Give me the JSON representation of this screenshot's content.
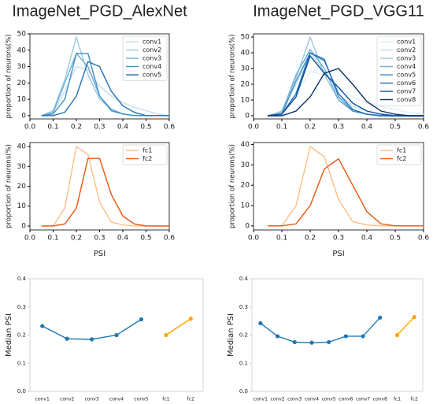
{
  "chart_data": [
    {
      "type": "line",
      "title": "ImageNet_PGD_AlexNet",
      "ylabel": "proportion of neurons(%)",
      "x": [
        0.05,
        0.1,
        0.15,
        0.2,
        0.25,
        0.3,
        0.35,
        0.4,
        0.45,
        0.5,
        0.55,
        0.6
      ],
      "series": [
        {
          "name": "conv1",
          "color": "#c6dbef",
          "values": [
            0,
            2,
            15,
            30,
            28,
            18,
            12,
            8,
            5,
            3,
            1,
            0
          ]
        },
        {
          "name": "conv2",
          "color": "#9ecae1",
          "values": [
            0,
            3,
            22,
            48,
            25,
            10,
            4,
            1,
            0,
            0,
            0,
            0
          ]
        },
        {
          "name": "conv3",
          "color": "#6baed6",
          "values": [
            0,
            2,
            20,
            38,
            30,
            12,
            4,
            1,
            0,
            0,
            0,
            0
          ]
        },
        {
          "name": "conv4",
          "color": "#4292c6",
          "values": [
            0,
            1,
            10,
            38,
            38,
            12,
            3,
            1,
            0,
            0,
            0,
            0
          ]
        },
        {
          "name": "conv5",
          "color": "#2171b5",
          "values": [
            0,
            0,
            2,
            12,
            33,
            30,
            15,
            6,
            2,
            0,
            0,
            0
          ]
        }
      ],
      "xlim": [
        0,
        0.6
      ],
      "xticks": [
        {
          "value": 0,
          "label": "0.0"
        },
        0.1,
        0.2,
        0.3,
        0.4,
        0.5,
        0.6
      ],
      "ylim": [
        -2,
        50
      ],
      "yticks": [
        0,
        10,
        20,
        30,
        40,
        50
      ],
      "legend": "upper right"
    },
    {
      "type": "line",
      "xlabel": "PSI",
      "ylabel": "proportion of neurons(%)",
      "x": [
        0.05,
        0.1,
        0.15,
        0.2,
        0.25,
        0.3,
        0.35,
        0.4,
        0.45,
        0.5,
        0.55,
        0.6
      ],
      "series": [
        {
          "name": "fc1",
          "color": "#fdbe85",
          "values": [
            0,
            0,
            9,
            40,
            36,
            12,
            2,
            0.5,
            0,
            0,
            0,
            0
          ]
        },
        {
          "name": "fc2",
          "color": "#e6550d",
          "values": [
            0,
            0,
            1,
            9,
            34,
            34,
            16,
            5,
            1,
            0,
            0,
            0
          ]
        }
      ],
      "xlim": [
        0,
        0.6
      ],
      "xticks": [
        {
          "value": 0,
          "label": "0.0"
        },
        0.1,
        0.2,
        0.3,
        0.4,
        0.5,
        0.6
      ],
      "ylim": [
        -2,
        42
      ],
      "yticks": [
        0,
        10,
        20,
        30,
        40
      ],
      "legend": "upper right"
    },
    {
      "type": "line",
      "title": "ImageNet_PGD_VGG11",
      "ylabel": "proportion of neurons(%)",
      "x": [
        0.05,
        0.1,
        0.15,
        0.2,
        0.25,
        0.3,
        0.35,
        0.4,
        0.45,
        0.5,
        0.55,
        0.6
      ],
      "series": [
        {
          "name": "conv1",
          "color": "#deebf7",
          "values": [
            0,
            2,
            14,
            28,
            26,
            18,
            12,
            8,
            6,
            4,
            2,
            1
          ]
        },
        {
          "name": "conv2",
          "color": "#c6dbef",
          "values": [
            0,
            3,
            20,
            40,
            28,
            14,
            6,
            3,
            1,
            0,
            0,
            0
          ]
        },
        {
          "name": "conv3",
          "color": "#9ecae1",
          "values": [
            0,
            3,
            24,
            50,
            26,
            10,
            3,
            1,
            0,
            0,
            0,
            0
          ]
        },
        {
          "name": "conv4",
          "color": "#6baed6",
          "values": [
            0,
            2,
            26,
            42,
            30,
            10,
            3,
            1,
            0,
            0,
            0,
            0
          ]
        },
        {
          "name": "conv5",
          "color": "#4292c6",
          "values": [
            0,
            1,
            22,
            40,
            36,
            12,
            3,
            1,
            0,
            0,
            0,
            0
          ]
        },
        {
          "name": "conv6",
          "color": "#2171b5",
          "values": [
            0,
            1,
            14,
            40,
            35,
            14,
            4,
            1,
            0,
            0,
            0,
            0
          ]
        },
        {
          "name": "conv7",
          "color": "#08519c",
          "values": [
            0,
            1,
            12,
            38,
            27,
            18,
            8,
            3,
            1,
            0,
            0,
            0
          ]
        },
        {
          "name": "conv8",
          "color": "#08306b",
          "values": [
            0,
            0,
            3,
            12,
            27,
            30,
            20,
            9,
            3,
            1,
            0,
            0
          ]
        }
      ],
      "xlim": [
        0,
        0.6
      ],
      "xticks": [
        {
          "value": 0,
          "label": "0.0"
        },
        0.1,
        0.2,
        0.3,
        0.4,
        0.5,
        0.6
      ],
      "ylim": [
        -2,
        52
      ],
      "yticks": [
        0,
        10,
        20,
        30,
        40,
        50
      ],
      "legend": "upper right"
    },
    {
      "type": "line",
      "xlabel": "PSI",
      "ylabel": "proportion of neurons(%)",
      "x": [
        0.05,
        0.1,
        0.15,
        0.2,
        0.25,
        0.3,
        0.35,
        0.4,
        0.45,
        0.5,
        0.55,
        0.6
      ],
      "series": [
        {
          "name": "fc1",
          "color": "#fdbe85",
          "values": [
            0,
            0,
            10,
            39,
            34,
            13,
            2,
            0.5,
            0,
            0,
            0,
            0
          ]
        },
        {
          "name": "fc2",
          "color": "#e6550d",
          "values": [
            0,
            0,
            1,
            10,
            28,
            33,
            20,
            7,
            1,
            0,
            0,
            0
          ]
        }
      ],
      "xlim": [
        0,
        0.6
      ],
      "xticks": [
        {
          "value": 0,
          "label": "0.0"
        },
        0.1,
        0.2,
        0.3,
        0.4,
        0.5,
        0.6
      ],
      "ylim": [
        -2,
        41
      ],
      "yticks": [
        0,
        10,
        20,
        30,
        40
      ],
      "legend": "upper right"
    },
    {
      "type": "line",
      "ylabel": "Median PSI",
      "marker": "o",
      "categories": [
        "conv1",
        "conv2",
        "conv3",
        "conv4",
        "conv5",
        "fc1",
        "fc2"
      ],
      "series": [
        {
          "color": "#1f77b4",
          "values": [
            0.232,
            0.187,
            0.185,
            0.2,
            0.256,
            null,
            null
          ]
        },
        {
          "color": "#ffa500",
          "values": [
            null,
            null,
            null,
            null,
            null,
            0.2,
            0.258
          ]
        }
      ],
      "ylim": [
        0,
        0.4
      ],
      "yticks": [
        {
          "value": 0,
          "label": "0.0"
        },
        0.1,
        0.2,
        0.3,
        0.4
      ]
    },
    {
      "type": "line",
      "ylabel": "Median PSI",
      "marker": "o",
      "categories": [
        "conv1",
        "conv2",
        "conv3",
        "conv4",
        "conv5",
        "conv6",
        "conv7",
        "conv8",
        "fc1",
        "fc2"
      ],
      "series": [
        {
          "color": "#1f77b4",
          "values": [
            0.242,
            0.196,
            0.175,
            0.173,
            0.175,
            0.196,
            0.196,
            0.262,
            null,
            null
          ]
        },
        {
          "color": "#ffa500",
          "values": [
            null,
            null,
            null,
            null,
            null,
            null,
            null,
            null,
            0.2,
            0.264
          ]
        }
      ],
      "ylim": [
        0,
        0.4
      ],
      "yticks": [
        {
          "value": 0,
          "label": "0.0"
        },
        0.1,
        0.2,
        0.3,
        0.4
      ]
    }
  ]
}
